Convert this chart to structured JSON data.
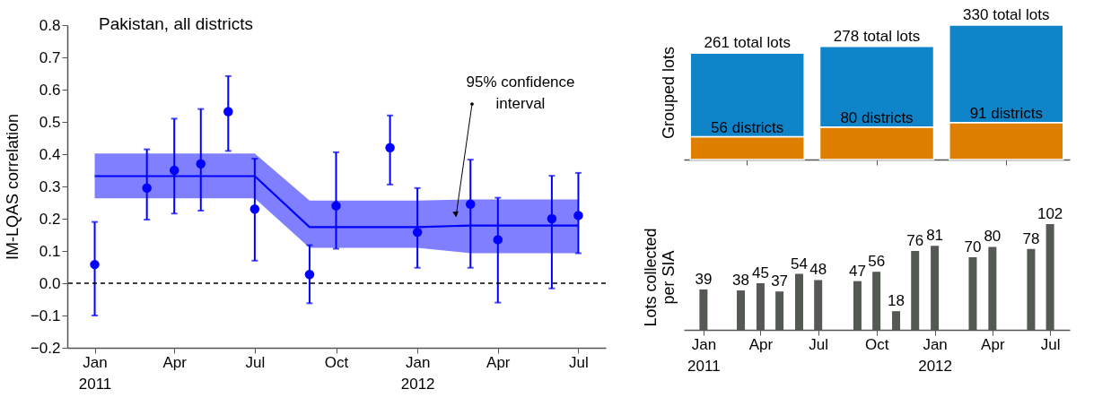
{
  "chart_data": [
    {
      "type": "scatter",
      "title": "Pakistan, all districts",
      "ylabel": "IM-LQAS correlation",
      "marker": "circle",
      "xlim": [
        "2010-12-01",
        "2012-08-01"
      ],
      "xticks": [
        {
          "value": "2011-01-01",
          "label": "Jan 2011"
        },
        {
          "value": "2011-04-01",
          "label": "Apr"
        },
        {
          "value": "2011-07-01",
          "label": "Jul"
        },
        {
          "value": "2011-10-01",
          "label": "Oct"
        },
        {
          "value": "2012-01-01",
          "label": "Jan 2012"
        },
        {
          "value": "2012-04-01",
          "label": "Apr"
        },
        {
          "value": "2012-07-01",
          "label": "Jul"
        }
      ],
      "ylim": [
        -0.2,
        0.8
      ],
      "yticks": [
        {
          "value": -0.2,
          "label": "−0.2"
        },
        {
          "value": -0.1,
          "label": "−0.1"
        },
        {
          "value": 0,
          "label": "0.0"
        },
        0.1,
        0.2,
        0.3,
        0.4,
        0.5,
        0.6,
        0.7,
        0.8
      ],
      "ref_lines": [
        {
          "axis": "y",
          "value": 0,
          "color": "#000000",
          "line_style": "dashed"
        }
      ],
      "annotations": [
        "95% confidence interval"
      ],
      "series": [
        {
          "type": "line",
          "marker": "none",
          "color": "#0000ff",
          "x": [
            "2011-01-01",
            "2011-07-01",
            "2011-09-01",
            "2012-01-01",
            "2012-03-01",
            "2012-07-01"
          ],
          "values": [
            0.332,
            0.332,
            0.174,
            0.174,
            0.179,
            0.179
          ],
          "lower": [
            0.263,
            0.263,
            0.11,
            0.11,
            0.093,
            0.093
          ],
          "upper": [
            0.402,
            0.402,
            0.256,
            0.256,
            0.26,
            0.26
          ]
        },
        {
          "type": "scatter",
          "color": "#0000ff",
          "x": [
            "2011-01-01",
            "2011-03-01",
            "2011-04-01",
            "2011-05-01",
            "2011-06-01",
            "2011-07-01",
            "2011-09-01",
            "2011-10-01",
            "2011-12-01",
            "2012-01-01",
            "2012-03-01",
            "2012-04-01",
            "2012-06-01",
            "2012-07-01"
          ],
          "values": [
            0.058,
            0.295,
            0.35,
            0.37,
            0.532,
            0.23,
            0.027,
            0.24,
            0.42,
            0.158,
            0.245,
            0.135,
            0.2,
            0.21
          ],
          "errors": [
            [
              -0.1,
              0.19
            ],
            [
              0.197,
              0.415
            ],
            [
              0.216,
              0.51
            ],
            [
              0.225,
              0.54
            ],
            [
              0.41,
              0.642
            ],
            [
              0.07,
              0.386
            ],
            [
              -0.062,
              0.118
            ],
            [
              0.107,
              0.406
            ],
            [
              0.306,
              0.52
            ],
            [
              0.048,
              0.295
            ],
            [
              0.048,
              0.383
            ],
            [
              -0.06,
              0.265
            ],
            [
              -0.016,
              0.333
            ],
            [
              0.093,
              0.342
            ]
          ]
        }
      ]
    },
    {
      "type": "bar",
      "ylabel": "Grouped lots",
      "stacked": true,
      "tick_labels": false,
      "categories": [
        null,
        null,
        null
      ],
      "totals": [
        "261 total lots",
        "278 total lots",
        "330 total lots"
      ],
      "series": [
        {
          "color": "#de7f00",
          "values": [
            56,
            80,
            91
          ],
          "value_labels": [
            "56 districts",
            "80 districts",
            "91 districts"
          ]
        },
        {
          "color": "#0f84c9",
          "values": [
            205,
            198,
            239
          ]
        }
      ]
    },
    {
      "type": "bar",
      "ylabel": "Lots collected per SIA",
      "data_labels": true,
      "tick_labels": "x",
      "color": "#545954",
      "xlim": [
        "2010-12-01",
        "2012-08-01"
      ],
      "xticks": [
        {
          "value": "2011-01-01",
          "label": "Jan 2011"
        },
        {
          "value": "2011-04-01",
          "label": "Apr"
        },
        {
          "value": "2011-07-01",
          "label": "Jul"
        },
        {
          "value": "2011-10-01",
          "label": "Oct"
        },
        {
          "value": "2012-01-01",
          "label": "Jan 2012"
        },
        {
          "value": "2012-04-01",
          "label": "Apr"
        },
        {
          "value": "2012-07-01",
          "label": "Jul"
        }
      ],
      "x": [
        "2011-01-01",
        "2011-03-01",
        "2011-04-01",
        "2011-05-01",
        "2011-06-01",
        "2011-07-01",
        "2011-09-01",
        "2011-10-01",
        "2011-11-01",
        "2011-12-01",
        "2012-01-01",
        "2012-03-01",
        "2012-04-01",
        "2012-06-01",
        "2012-07-01"
      ],
      "values": [
        39,
        38,
        45,
        37,
        54,
        48,
        47,
        56,
        18,
        76,
        81,
        70,
        80,
        78,
        102
      ]
    }
  ]
}
